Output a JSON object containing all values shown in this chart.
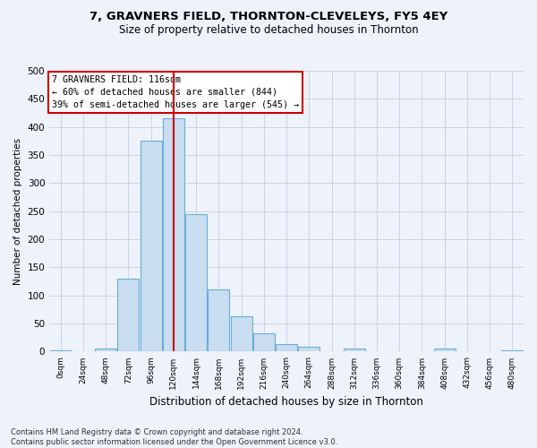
{
  "title": "7, GRAVNERS FIELD, THORNTON-CLEVELEYS, FY5 4EY",
  "subtitle": "Size of property relative to detached houses in Thornton",
  "xlabel": "Distribution of detached houses by size in Thornton",
  "ylabel": "Number of detached properties",
  "bar_values": [
    3,
    0,
    5,
    130,
    375,
    415,
    245,
    110,
    63,
    33,
    13,
    8,
    0,
    5,
    0,
    0,
    0,
    5,
    0,
    0,
    2
  ],
  "bin_labels": [
    "0sqm",
    "24sqm",
    "48sqm",
    "72sqm",
    "96sqm",
    "120sqm",
    "144sqm",
    "168sqm",
    "192sqm",
    "216sqm",
    "240sqm",
    "264sqm",
    "288sqm",
    "312sqm",
    "336sqm",
    "360sqm",
    "384sqm",
    "408sqm",
    "432sqm",
    "456sqm",
    "480sqm"
  ],
  "bar_color": "#c8ddf0",
  "bar_edge_color": "#6aaed6",
  "grid_color": "#c8d4e8",
  "vline_x": 5,
  "vline_color": "#cc0000",
  "annotation_text": "7 GRAVNERS FIELD: 116sqm\n← 60% of detached houses are smaller (844)\n39% of semi-detached houses are larger (545) →",
  "annotation_box_color": "#ffffff",
  "annotation_box_edge": "#cc0000",
  "footer_text": "Contains HM Land Registry data © Crown copyright and database right 2024.\nContains public sector information licensed under the Open Government Licence v3.0.",
  "ylim": [
    0,
    500
  ],
  "yticks": [
    0,
    50,
    100,
    150,
    200,
    250,
    300,
    350,
    400,
    450,
    500
  ],
  "bg_color": "#eef2fa",
  "title_fontsize": 9.5,
  "subtitle_fontsize": 8.5
}
